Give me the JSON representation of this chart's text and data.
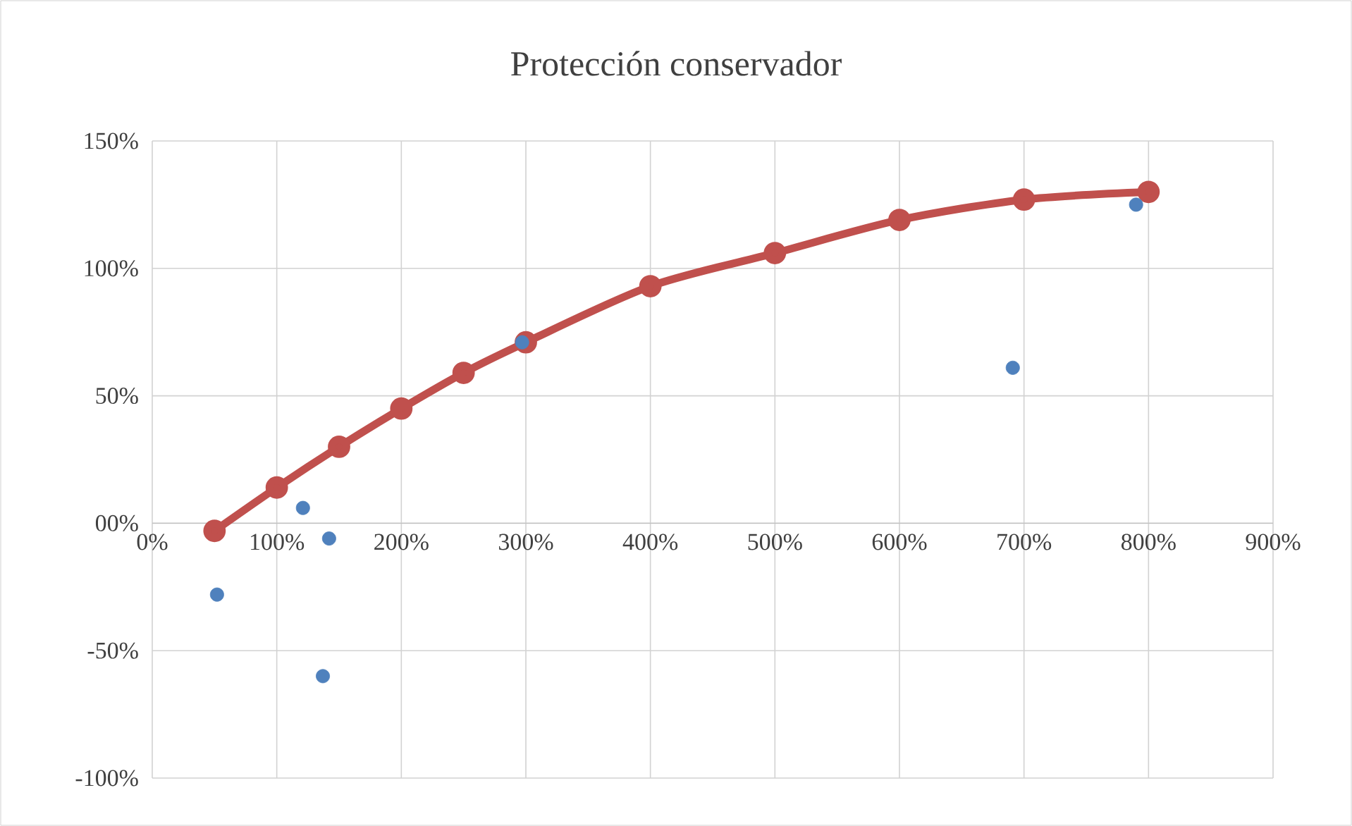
{
  "chart_data": {
    "type": "scatter",
    "title": "Protección conservador",
    "xlim": [
      0,
      900
    ],
    "ylim": [
      -100,
      150
    ],
    "xticks": [
      {
        "value": 0,
        "label": "0%"
      },
      {
        "value": 100,
        "label": "100%"
      },
      {
        "value": 200,
        "label": "200%"
      },
      {
        "value": 300,
        "label": "300%"
      },
      {
        "value": 400,
        "label": "400%"
      },
      {
        "value": 500,
        "label": "500%"
      },
      {
        "value": 600,
        "label": "600%"
      },
      {
        "value": 700,
        "label": "700%"
      },
      {
        "value": 800,
        "label": "800%"
      },
      {
        "value": 900,
        "label": "900%"
      }
    ],
    "yticks": [
      {
        "value": -100,
        "label": "-100%"
      },
      {
        "value": -50,
        "label": "-50%"
      },
      {
        "value": 0,
        "label": "00%"
      },
      {
        "value": 50,
        "label": "50%"
      },
      {
        "value": 100,
        "label": "100%"
      },
      {
        "value": 150,
        "label": "150%"
      }
    ],
    "grid": true,
    "marker": "circle",
    "series": [
      {
        "color": "#4f81bd",
        "x": [
          52,
          121,
          142,
          137,
          297,
          691,
          790
        ],
        "values": [
          -28,
          6,
          -6,
          -60,
          71,
          61,
          125
        ]
      },
      {
        "type": "line",
        "color": "#c0504d",
        "x": [
          50,
          100,
          150,
          200,
          250,
          300,
          400,
          500,
          600,
          700,
          800
        ],
        "values": [
          -3,
          14,
          30,
          45,
          59,
          71,
          93,
          106,
          119,
          127,
          130
        ]
      }
    ]
  }
}
